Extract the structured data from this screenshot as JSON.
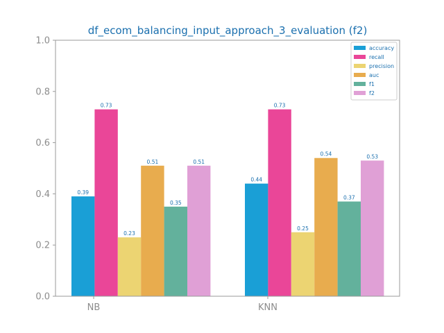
{
  "chart_data": {
    "type": "bar",
    "title": "df_ecom_balancing_input_approach_3_evaluation (f2)",
    "xlabel": "",
    "ylabel": "",
    "categories": [
      "NB",
      "KNN"
    ],
    "ylim": [
      0,
      1.0
    ],
    "yticks": [
      "0.0",
      "0.2",
      "0.4",
      "0.6",
      "0.8",
      "1.0"
    ],
    "grid": false,
    "legend_position": "top-right",
    "series": [
      {
        "name": "accuracy",
        "color": "#1a9fd6",
        "values": [
          0.39,
          0.44
        ],
        "labels": [
          "0.39",
          "0.44"
        ]
      },
      {
        "name": "recall",
        "color": "#ea4698",
        "values": [
          0.73,
          0.73
        ],
        "labels": [
          "0.73",
          "0.73"
        ]
      },
      {
        "name": "precision",
        "color": "#ecd472",
        "values": [
          0.23,
          0.25
        ],
        "labels": [
          "0.23",
          "0.25"
        ]
      },
      {
        "name": "auc",
        "color": "#e8ac4e",
        "values": [
          0.51,
          0.54
        ],
        "labels": [
          "0.51",
          "0.54"
        ]
      },
      {
        "name": "f1",
        "color": "#63b19c",
        "values": [
          0.35,
          0.37
        ],
        "labels": [
          "0.35",
          "0.37"
        ]
      },
      {
        "name": "f2",
        "color": "#e0a0d6",
        "values": [
          0.51,
          0.53
        ],
        "labels": [
          "0.51",
          "0.53"
        ]
      }
    ]
  }
}
